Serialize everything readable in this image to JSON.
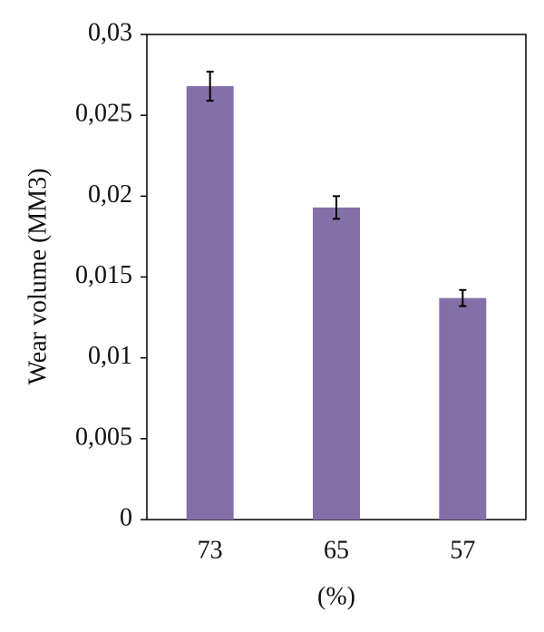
{
  "chart_data": {
    "type": "bar",
    "y_label": "Wear volume (MM3)",
    "x_label": "(%)",
    "categories": [
      "73",
      "65",
      "57"
    ],
    "values": [
      0.0268,
      0.0193,
      0.0137
    ],
    "errors": [
      0.0009,
      0.0007,
      0.0005
    ],
    "color": "#8470a8",
    "ylim": [
      0,
      0.03
    ],
    "yticks": [
      0,
      {
        "value": 0.005,
        "label": "0,005"
      },
      {
        "value": 0.01,
        "label": "0,01"
      },
      {
        "value": 0.015,
        "label": "0,015"
      },
      {
        "value": 0.02,
        "label": "0,02"
      },
      {
        "value": 0.025,
        "label": "0,025"
      },
      {
        "value": 0.03,
        "label": "0,03"
      }
    ]
  }
}
